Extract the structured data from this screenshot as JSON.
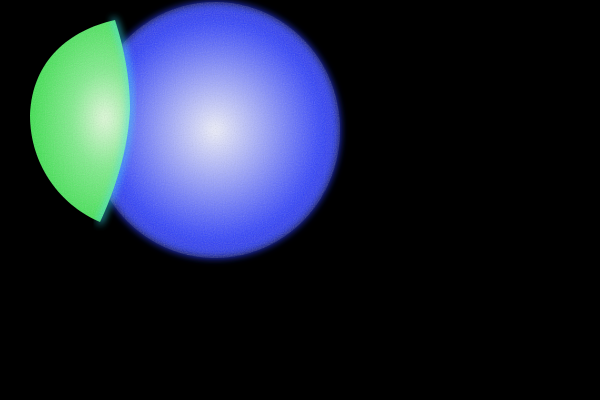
{
  "scene": {
    "background_color": "#000000",
    "glows": [
      {
        "name": "blue-glow",
        "edge_color": "#2a3cff",
        "mid_color": "#8c96ff",
        "core_color": "#f4f6ff"
      },
      {
        "name": "green-glow",
        "edge_color": "#27e03c",
        "mid_color": "#7df08a",
        "core_color": "#e8ffe0"
      }
    ],
    "rim_color": "#35e6ff"
  }
}
